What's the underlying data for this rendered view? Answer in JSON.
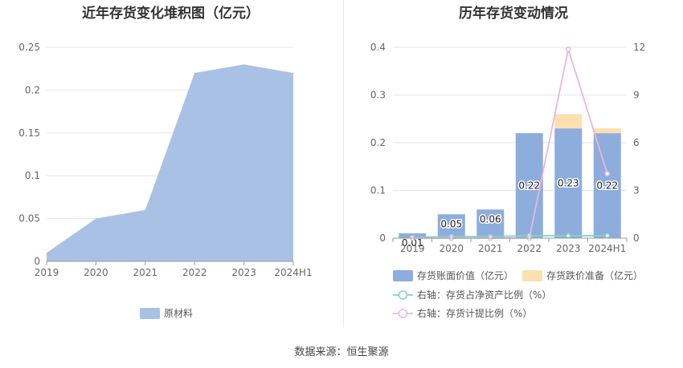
{
  "chart_data": [
    {
      "type": "area",
      "title": "近年存货变化堆积图（亿元）",
      "categories": [
        "2019",
        "2020",
        "2021",
        "2022",
        "2023",
        "2024H1"
      ],
      "series": [
        {
          "name": "原材料",
          "values": [
            0.01,
            0.05,
            0.06,
            0.22,
            0.23,
            0.22
          ],
          "color": "#a9c1e4"
        }
      ],
      "ylim": [
        0,
        0.25
      ],
      "yticks": [
        "0",
        "0.05",
        "0.1",
        "0.15",
        "0.2",
        "0.25"
      ],
      "grid": true,
      "legend": "bottom"
    },
    {
      "type": "bar",
      "title": "历年存货变动情况",
      "categories": [
        "2019",
        "2020",
        "2021",
        "2022",
        "2023",
        "2024H1"
      ],
      "series": [
        {
          "name": "存货账面价值（亿元）",
          "values": [
            0.01,
            0.05,
            0.06,
            0.22,
            0.23,
            0.22
          ],
          "labels": [
            "0.01",
            "0.05",
            "0.06",
            "0.22",
            "0.23",
            "0.22"
          ],
          "color": "#8daddd",
          "axis": "left"
        },
        {
          "name": "存货跌价准备（亿元）",
          "values": [
            0,
            0,
            0,
            0,
            0.03,
            0.01
          ],
          "color": "#fde0b0",
          "axis": "left"
        },
        {
          "name": "右轴：存货占净资产比例（%）",
          "values": [
            0.05,
            0.1,
            0.1,
            0.15,
            0.15,
            0.15
          ],
          "color": "#7ed3d0",
          "axis": "right"
        },
        {
          "name": "右轴：存货计提比例（%）",
          "values": [
            0,
            0,
            0,
            0,
            11.88,
            4.05
          ],
          "color": "#eab6dc",
          "axis": "right"
        }
      ],
      "ylim_left": [
        0,
        0.4
      ],
      "yticks_left": [
        "0",
        "0.1",
        "0.2",
        "0.3",
        "0.4"
      ],
      "ylim_right": [
        0,
        12
      ],
      "yticks_right": [
        "0",
        "3",
        "6",
        "9",
        "12"
      ],
      "grid": true,
      "legend": "bottom"
    }
  ],
  "source": "数据来源：恒生聚源"
}
